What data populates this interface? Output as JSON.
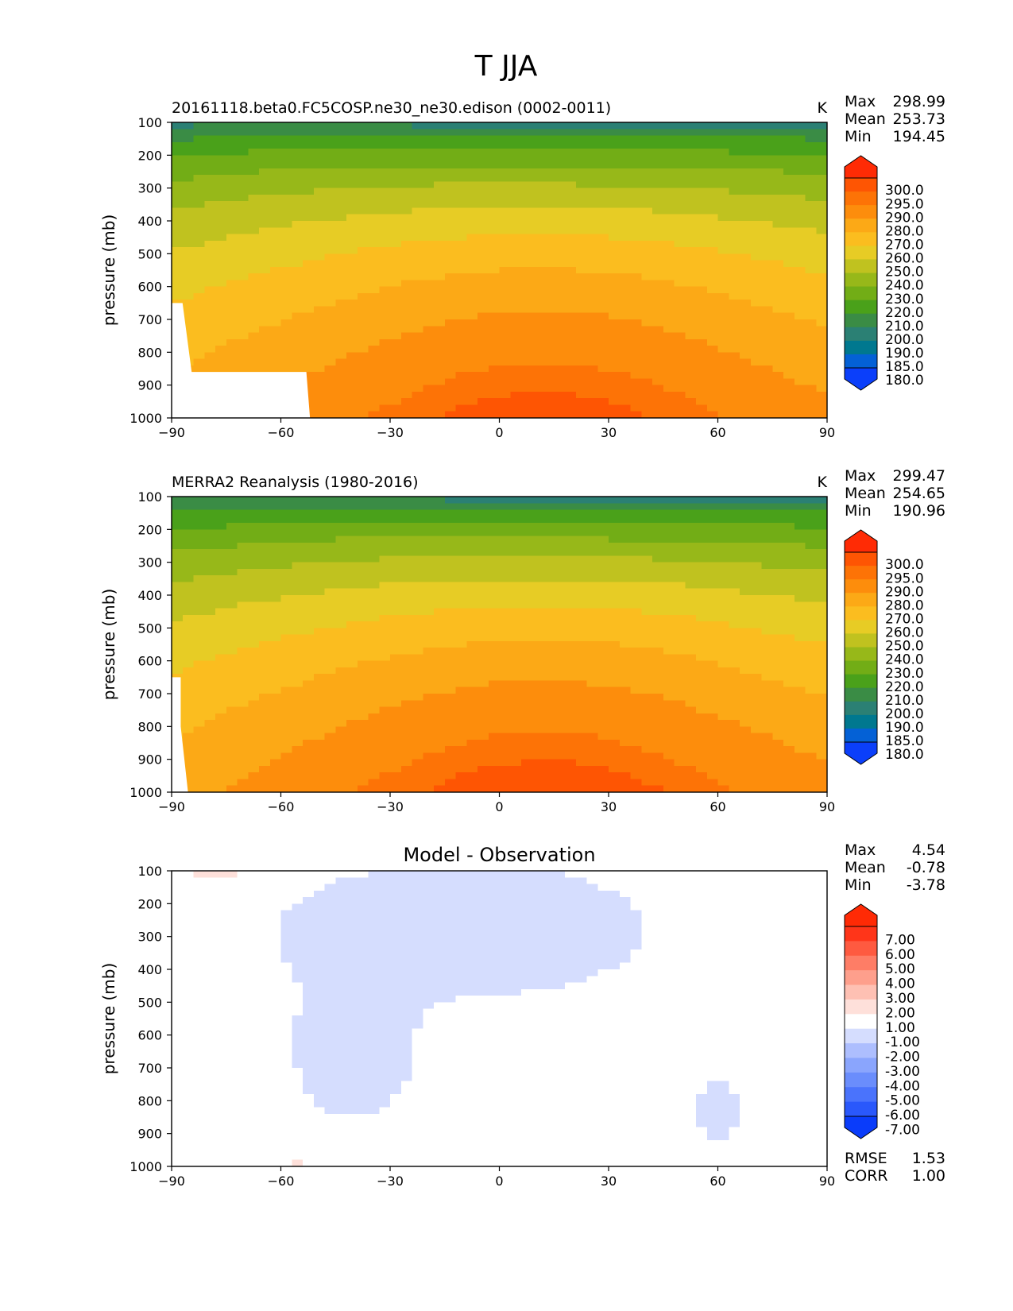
{
  "figure_title": "T JJA",
  "chart_data": [
    {
      "type": "contour",
      "title": "20161118.beta0.FC5COSP.ne30_ne30.edison (0002-0011)",
      "units": "K",
      "ylabel": "pressure (mb)",
      "xlabel": "",
      "xlim": [
        -90,
        90
      ],
      "ylim": [
        1000,
        100
      ],
      "x_ticks": [
        "−90",
        "−60",
        "−30",
        "0",
        "30",
        "60",
        "90"
      ],
      "y_ticks": [
        "100",
        "200",
        "300",
        "400",
        "500",
        "600",
        "700",
        "800",
        "900",
        "1000"
      ],
      "stats": [
        {
          "label": "Max",
          "value": "298.99"
        },
        {
          "label": "Mean",
          "value": "253.73"
        },
        {
          "label": "Min",
          "value": "194.45"
        }
      ],
      "levels": [
        180,
        185,
        190,
        200,
        210,
        220,
        230,
        240,
        250,
        260,
        270,
        280,
        290,
        295,
        300
      ],
      "colorbar_labels": [
        "300.0",
        "295.0",
        "290.0",
        "280.0",
        "270.0",
        "260.0",
        "250.0",
        "240.0",
        "230.0",
        "220.0",
        "210.0",
        "200.0",
        "190.0",
        "185.0",
        "180.0"
      ]
    },
    {
      "type": "contour",
      "title": "MERRA2 Reanalysis (1980-2016)",
      "units": "K",
      "ylabel": "pressure (mb)",
      "xlabel": "",
      "xlim": [
        -90,
        90
      ],
      "ylim": [
        1000,
        100
      ],
      "x_ticks": [
        "−90",
        "−60",
        "−30",
        "0",
        "30",
        "60",
        "90"
      ],
      "y_ticks": [
        "100",
        "200",
        "300",
        "400",
        "500",
        "600",
        "700",
        "800",
        "900",
        "1000"
      ],
      "stats": [
        {
          "label": "Max",
          "value": "299.47"
        },
        {
          "label": "Mean",
          "value": "254.65"
        },
        {
          "label": "Min",
          "value": "190.96"
        }
      ],
      "levels": [
        180,
        185,
        190,
        200,
        210,
        220,
        230,
        240,
        250,
        260,
        270,
        280,
        290,
        295,
        300
      ],
      "colorbar_labels": [
        "300.0",
        "295.0",
        "290.0",
        "280.0",
        "270.0",
        "260.0",
        "250.0",
        "240.0",
        "230.0",
        "220.0",
        "210.0",
        "200.0",
        "190.0",
        "185.0",
        "180.0"
      ]
    },
    {
      "type": "contour",
      "title": "Model - Observation",
      "units": "",
      "ylabel": "pressure (mb)",
      "xlabel": "",
      "xlim": [
        -90,
        90
      ],
      "ylim": [
        1000,
        100
      ],
      "x_ticks": [
        "−90",
        "−60",
        "−30",
        "0",
        "30",
        "60",
        "90"
      ],
      "y_ticks": [
        "100",
        "200",
        "300",
        "400",
        "500",
        "600",
        "700",
        "800",
        "900",
        "1000"
      ],
      "stats": [
        {
          "label": "Max",
          "value": "4.54"
        },
        {
          "label": "Mean",
          "value": "-0.78"
        },
        {
          "label": "Min",
          "value": "-3.78"
        }
      ],
      "extra_stats": [
        {
          "label": "RMSE",
          "value": "1.53"
        },
        {
          "label": "CORR",
          "value": "1.00"
        }
      ],
      "levels": [
        -7,
        -6,
        -5,
        -4,
        -3,
        -2,
        -1,
        1,
        2,
        3,
        4,
        5,
        6,
        7
      ],
      "colorbar_labels": [
        "7.00",
        "6.00",
        "5.00",
        "4.00",
        "3.00",
        "2.00",
        "1.00",
        "-1.00",
        "-2.00",
        "-3.00",
        "-4.00",
        "-5.00",
        "-6.00",
        "-7.00"
      ]
    }
  ],
  "colors": {
    "temp_scale": [
      "#0b3ffa",
      "#0461d6",
      "#00788f",
      "#2b8074",
      "#3a8c45",
      "#4aa11a",
      "#72ad16",
      "#97b819",
      "#c0c21f",
      "#e7cc25",
      "#fbbd1f",
      "#fca916",
      "#fd8d0c",
      "#fd7306",
      "#fe5503",
      "#ff2b05"
    ],
    "diff_scale": [
      "#0a3cfa",
      "#2a58fb",
      "#4a73fc",
      "#6a8dfc",
      "#8aa5fd",
      "#adbefe",
      "#d5ddfe",
      "#ffffff",
      "#fee0da",
      "#fec0b3",
      "#fe9f8c",
      "#fe7d66",
      "#fe5a40",
      "#ff3519",
      "#ff2a05"
    ]
  }
}
